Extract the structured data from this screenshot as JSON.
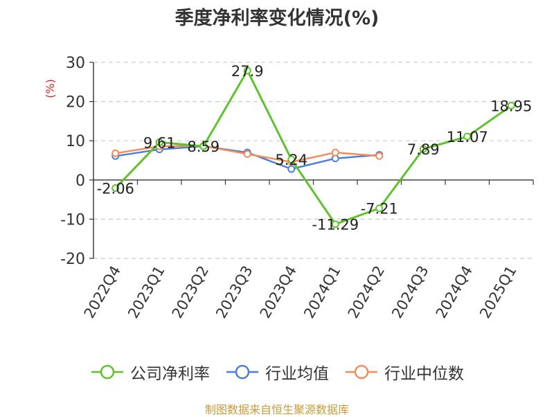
{
  "chart_data": {
    "type": "line",
    "title": "季度净利率变化情况(%)",
    "ylabel": "(%)",
    "ylim": [
      -20,
      30
    ],
    "yticks": [
      -20,
      -10,
      0,
      10,
      20,
      30
    ],
    "grid": true,
    "legend_position": "bottom",
    "categories": [
      "2022Q4",
      "2023Q1",
      "2023Q2",
      "2023Q3",
      "2023Q4",
      "2024Q1",
      "2024Q2",
      "2024Q3",
      "2024Q4",
      "2025Q1"
    ],
    "series": [
      {
        "name": "公司净利率",
        "color": "#5cc42a",
        "labeled": true,
        "values": [
          -2.06,
          9.61,
          8.59,
          27.9,
          5.24,
          -11.29,
          -7.21,
          7.89,
          11.07,
          18.95
        ]
      },
      {
        "name": "行业均值",
        "color": "#4a7fd8",
        "labeled": false,
        "values": [
          6.1,
          7.8,
          8.6,
          7.0,
          2.8,
          5.5,
          6.4,
          null,
          null,
          null
        ]
      },
      {
        "name": "行业中位数",
        "color": "#f28c5a",
        "labeled": false,
        "values": [
          6.8,
          8.6,
          8.7,
          6.6,
          4.6,
          7.0,
          6.1,
          null,
          null,
          null
        ]
      }
    ],
    "source": "制图数据来自恒生聚源数据库"
  },
  "colors": {
    "ylabel": "#e02020",
    "axis": "#333333",
    "grid": "#cccccc",
    "source": "#c79a3a"
  }
}
